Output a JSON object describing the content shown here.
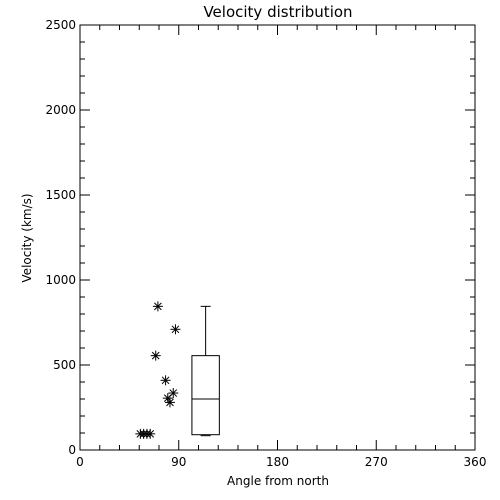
{
  "chart_data": {
    "type": "scatter",
    "title": "Velocity distribution",
    "xlabel": "Angle from north",
    "ylabel": "Velocity (km/s)",
    "xlim": [
      0,
      360
    ],
    "ylim": [
      0,
      2500
    ],
    "xticks": [
      0,
      90,
      180,
      270,
      360
    ],
    "yticks": [
      0,
      500,
      1000,
      1500,
      2000,
      2500
    ],
    "grid": false,
    "marker": "asterisk",
    "points": [
      {
        "x": 55,
        "y": 95
      },
      {
        "x": 58,
        "y": 95
      },
      {
        "x": 61,
        "y": 95
      },
      {
        "x": 64,
        "y": 95
      },
      {
        "x": 69,
        "y": 555
      },
      {
        "x": 71,
        "y": 845
      },
      {
        "x": 78,
        "y": 410
      },
      {
        "x": 80,
        "y": 305
      },
      {
        "x": 82,
        "y": 280
      },
      {
        "x": 85,
        "y": 335
      },
      {
        "x": 87,
        "y": 710
      }
    ],
    "boxplot": {
      "x_left": 102,
      "x_right": 127,
      "min": 90,
      "q1": 90,
      "median": 300,
      "q3": 555,
      "max": 845
    }
  }
}
